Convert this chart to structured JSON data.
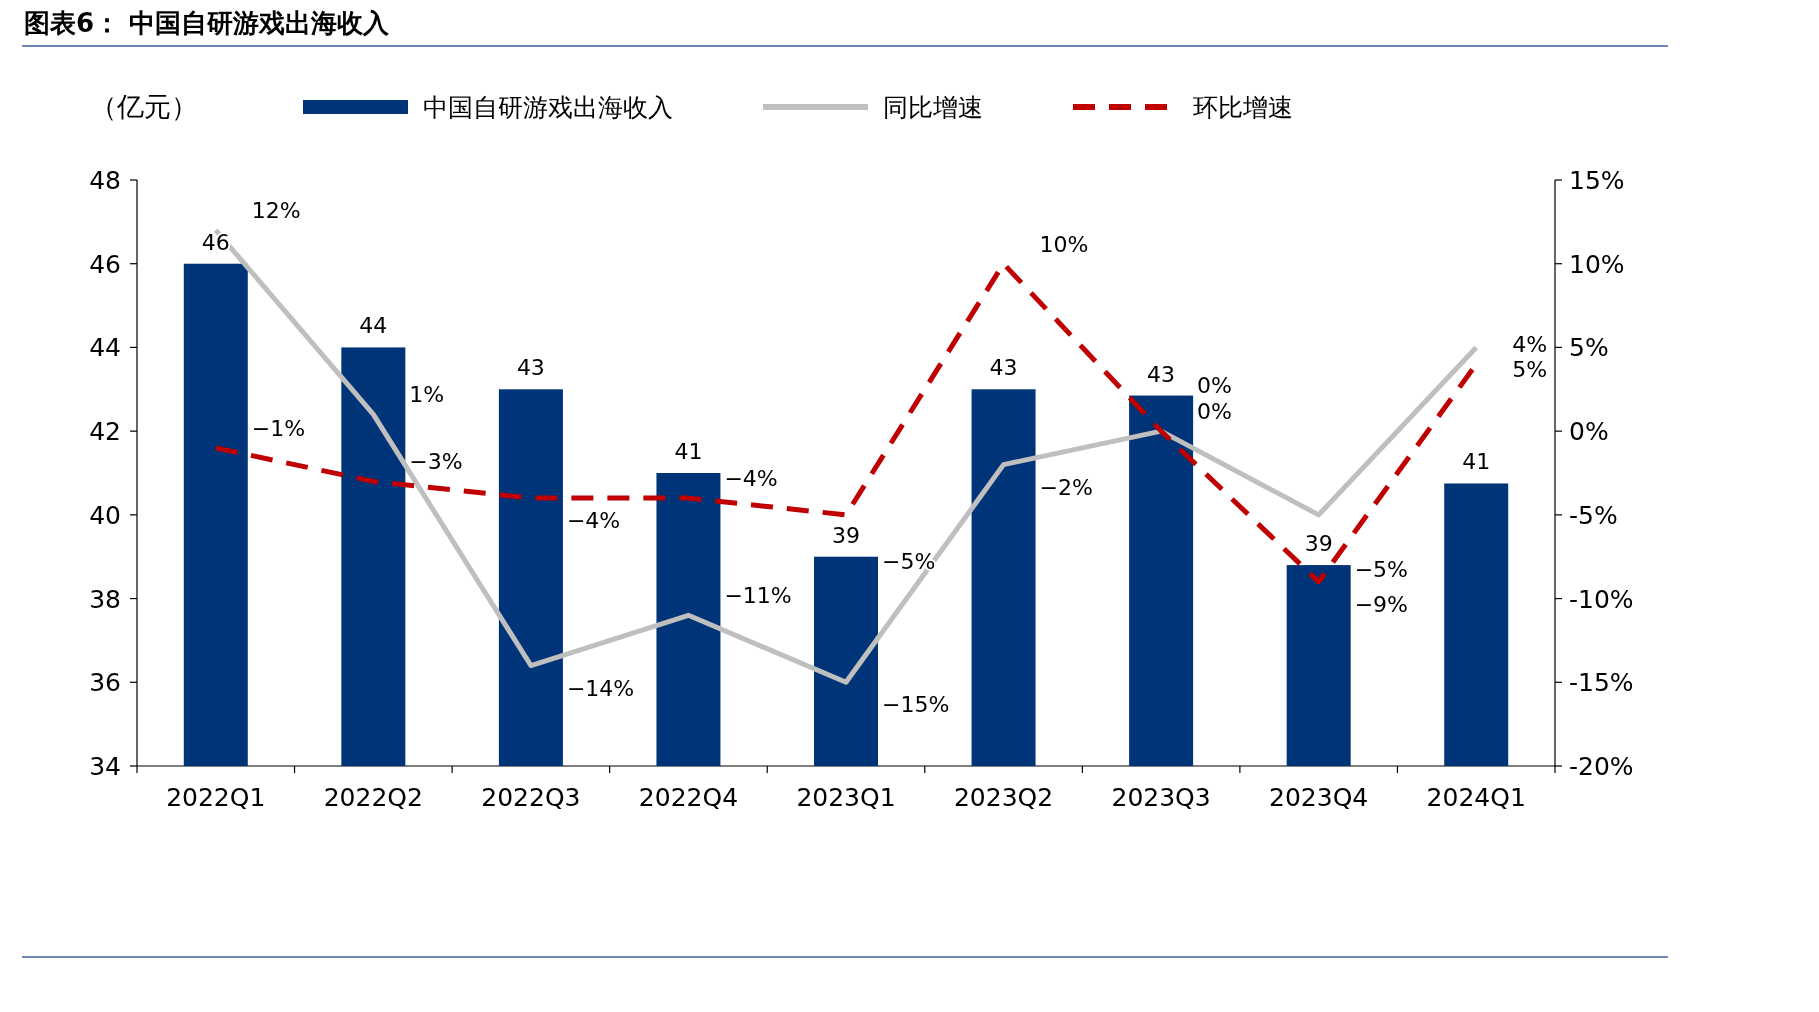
{
  "chart_data": {
    "type": "bar",
    "title": "图表6：  中国自研游戏出海收入",
    "ylabel": "（亿元）",
    "categories": [
      "2022Q1",
      "2022Q2",
      "2022Q3",
      "2022Q4",
      "2023Q1",
      "2023Q2",
      "2023Q3",
      "2023Q4",
      "2024Q1"
    ],
    "series": [
      {
        "name": "中国自研游戏出海收入",
        "type": "bar",
        "color": "#003478",
        "values": [
          46,
          44,
          43,
          41,
          39,
          43,
          42.85,
          38.8,
          40.75
        ],
        "value_labels": [
          "46",
          "44",
          "43",
          "41",
          "39",
          "43",
          "43",
          "39",
          "41"
        ]
      },
      {
        "name": "同比增速",
        "type": "line",
        "axis": "y2",
        "color": "#bfbfbf",
        "line_style": "solid",
        "values": [
          12,
          1,
          -14,
          -11,
          -15,
          -2,
          0,
          -5,
          5
        ],
        "value_labels": [
          "12%",
          "1%",
          "−14%",
          "−11%",
          "−15%",
          "−2%",
          "0%",
          "−5%",
          "5%"
        ]
      },
      {
        "name": "环比增速",
        "type": "line",
        "axis": "y2",
        "color": "#c00000",
        "line_style": "dashed",
        "values": [
          -1,
          -3,
          -4,
          -4,
          -5,
          10,
          0,
          -9,
          4
        ],
        "value_labels": [
          "−1%",
          "−3%",
          "−4%",
          "−4%",
          "−5%",
          "10%",
          "0%",
          "−9%",
          "4%"
        ]
      }
    ],
    "ylim": [
      34,
      48
    ],
    "yticks": [
      34,
      36,
      38,
      40,
      42,
      44,
      46,
      48
    ],
    "y2lim": [
      -20,
      15
    ],
    "y2ticks": [
      {
        "value": -20,
        "label": "-20%"
      },
      {
        "value": -15,
        "label": "-15%"
      },
      {
        "value": -10,
        "label": "-10%"
      },
      {
        "value": -5,
        "label": "-5%"
      },
      {
        "value": 0,
        "label": "0%"
      },
      {
        "value": 5,
        "label": "5%"
      },
      {
        "value": 10,
        "label": "10%"
      },
      {
        "value": 15,
        "label": "15%"
      }
    ],
    "legend": "top",
    "grid": false,
    "marker": "none"
  }
}
